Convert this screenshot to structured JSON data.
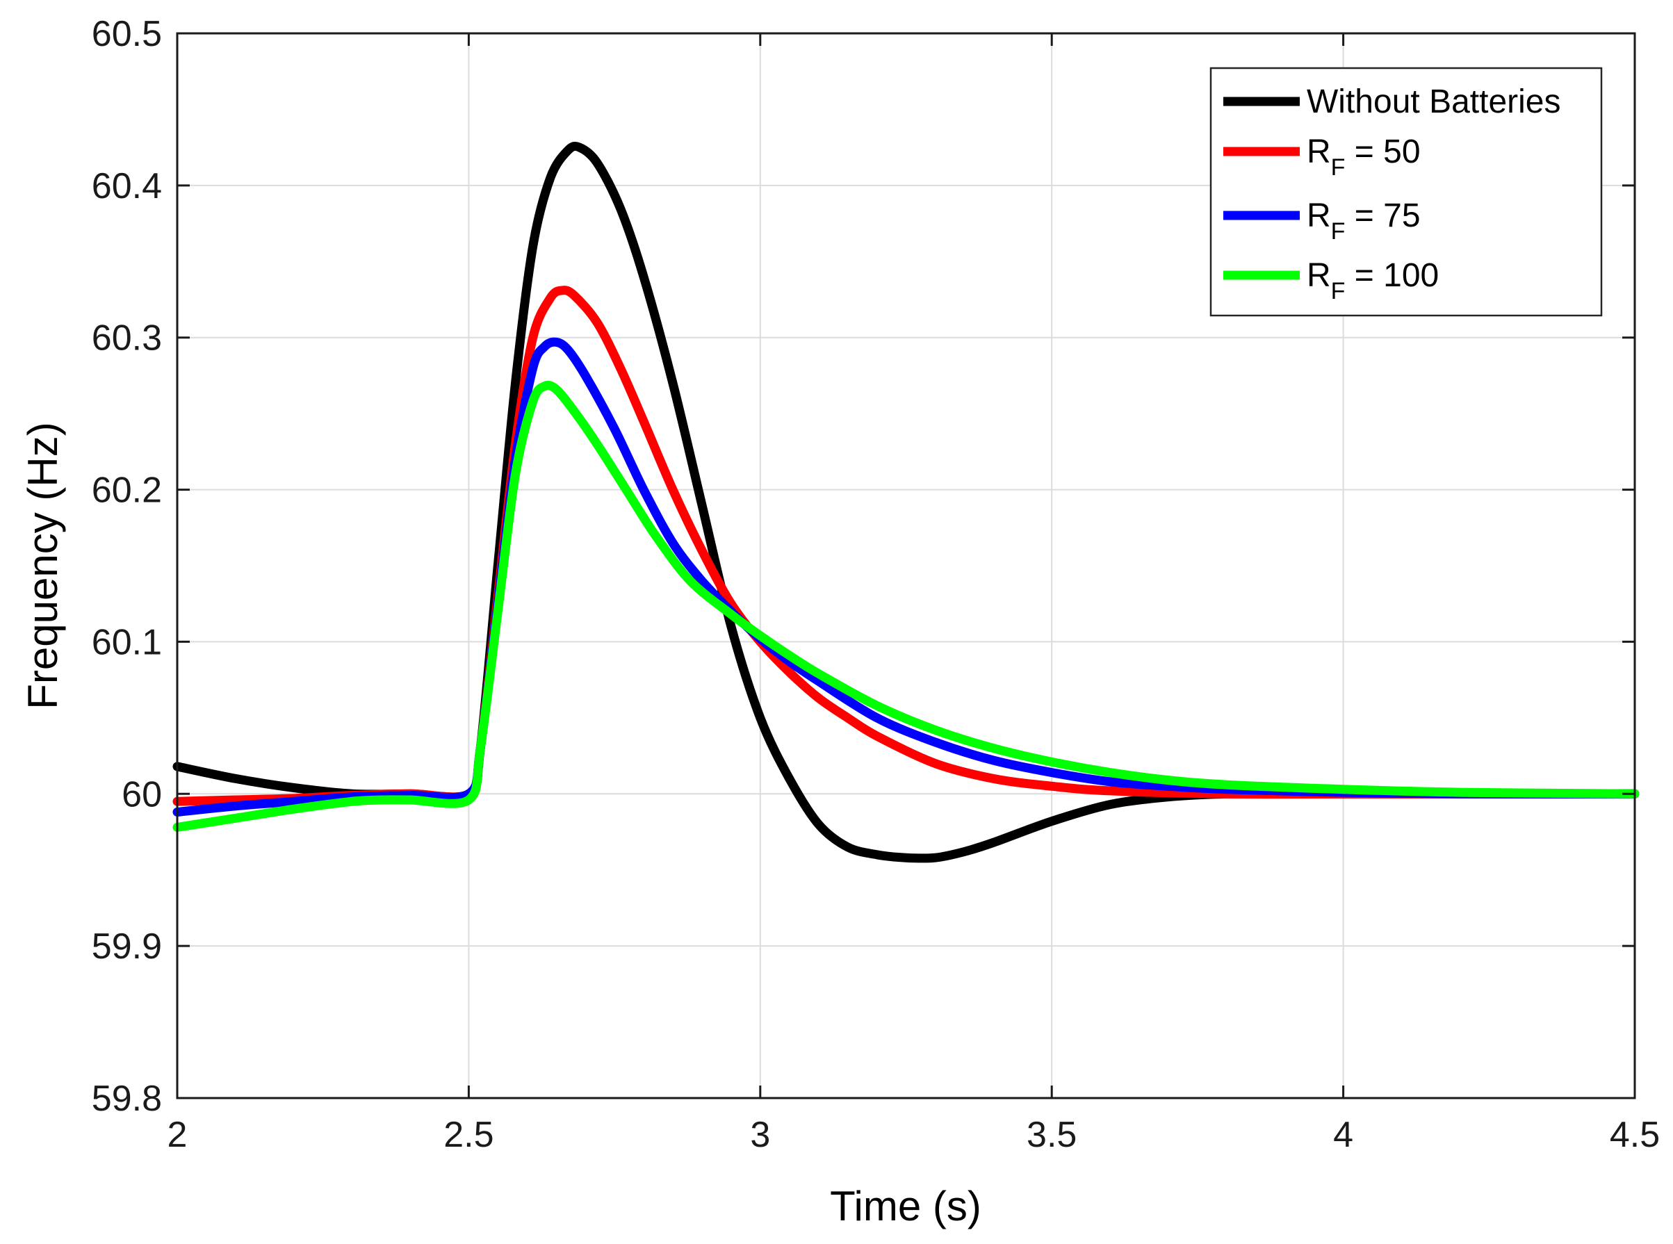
{
  "chart_data": {
    "type": "line",
    "title": "",
    "xlabel": "Time (s)",
    "ylabel": "Frequency (Hz)",
    "xlim": [
      2,
      4.5
    ],
    "ylim": [
      59.8,
      60.5
    ],
    "xticks": [
      2,
      2.5,
      3,
      3.5,
      4,
      4.5
    ],
    "xtick_labels": [
      "2",
      "2.5",
      "3",
      "3.5",
      "4",
      "4.5"
    ],
    "yticks": [
      59.8,
      59.9,
      60,
      60.1,
      60.2,
      60.3,
      60.4,
      60.5
    ],
    "ytick_labels": [
      "59.8",
      "59.9",
      "60",
      "60.1",
      "60.2",
      "60.3",
      "60.4",
      "60.5"
    ],
    "grid": true,
    "legend_position": "top-right",
    "series": [
      {
        "name": "Without Batteries",
        "legend_main": "Without Batteries",
        "legend_sub": "",
        "legend_rest": "",
        "color": "#000000",
        "x": [
          2.0,
          2.1,
          2.2,
          2.3,
          2.4,
          2.5,
          2.52,
          2.55,
          2.58,
          2.61,
          2.64,
          2.67,
          2.69,
          2.72,
          2.76,
          2.8,
          2.85,
          2.9,
          2.95,
          3.0,
          3.05,
          3.1,
          3.15,
          3.2,
          3.25,
          3.3,
          3.35,
          3.4,
          3.5,
          3.6,
          3.7,
          3.8,
          3.9,
          4.0,
          4.2,
          4.5
        ],
        "y": [
          60.018,
          60.01,
          60.004,
          60.0,
          60.0,
          60.0,
          60.03,
          60.15,
          60.27,
          60.36,
          60.405,
          60.423,
          60.425,
          60.415,
          60.385,
          60.34,
          60.27,
          60.19,
          60.11,
          60.05,
          60.01,
          59.98,
          59.965,
          59.96,
          59.958,
          59.958,
          59.962,
          59.968,
          59.982,
          59.993,
          59.998,
          60.0,
          60.0,
          60.0,
          60.0,
          60.0
        ]
      },
      {
        "name": "R_F = 50",
        "legend_main": "R",
        "legend_sub": "F",
        "legend_rest": " = 50",
        "color": "#ff0000",
        "x": [
          2.0,
          2.1,
          2.2,
          2.3,
          2.4,
          2.5,
          2.52,
          2.55,
          2.58,
          2.61,
          2.64,
          2.66,
          2.68,
          2.72,
          2.76,
          2.8,
          2.85,
          2.9,
          2.95,
          3.0,
          3.05,
          3.1,
          3.15,
          3.2,
          3.3,
          3.4,
          3.5,
          3.6,
          3.8,
          4.0,
          4.2,
          4.5
        ],
        "y": [
          59.995,
          59.996,
          59.997,
          59.999,
          60.0,
          60.0,
          60.03,
          60.13,
          60.23,
          60.3,
          60.326,
          60.331,
          60.328,
          60.31,
          60.28,
          60.245,
          60.2,
          60.16,
          60.125,
          60.1,
          60.08,
          60.063,
          60.05,
          60.038,
          60.02,
          60.01,
          60.005,
          60.002,
          60.0,
          60.0,
          60.0,
          60.0
        ]
      },
      {
        "name": "R_F = 75",
        "legend_main": "R",
        "legend_sub": "F",
        "legend_rest": " = 75",
        "color": "#0000ff",
        "x": [
          2.0,
          2.1,
          2.2,
          2.3,
          2.4,
          2.5,
          2.52,
          2.55,
          2.58,
          2.61,
          2.63,
          2.65,
          2.67,
          2.7,
          2.75,
          2.8,
          2.85,
          2.9,
          2.95,
          3.0,
          3.05,
          3.1,
          3.2,
          3.3,
          3.4,
          3.5,
          3.6,
          3.7,
          3.8,
          4.0,
          4.2,
          4.5
        ],
        "y": [
          59.988,
          59.992,
          59.995,
          59.998,
          59.999,
          60.0,
          60.03,
          60.125,
          60.22,
          60.28,
          60.294,
          60.297,
          60.292,
          60.275,
          60.24,
          60.2,
          60.165,
          60.14,
          60.12,
          60.102,
          60.087,
          60.074,
          60.05,
          60.034,
          60.022,
          60.014,
          60.008,
          60.005,
          60.003,
          60.001,
          60.0,
          60.0
        ]
      },
      {
        "name": "R_F = 100",
        "legend_main": "R",
        "legend_sub": "F",
        "legend_rest": " = 100",
        "color": "#00ff00",
        "x": [
          2.0,
          2.1,
          2.2,
          2.3,
          2.35,
          2.4,
          2.5,
          2.52,
          2.55,
          2.58,
          2.61,
          2.63,
          2.65,
          2.68,
          2.72,
          2.77,
          2.82,
          2.88,
          2.95,
          3.0,
          3.05,
          3.1,
          3.2,
          3.3,
          3.4,
          3.5,
          3.6,
          3.7,
          3.8,
          4.0,
          4.2,
          4.5
        ],
        "y": [
          59.978,
          59.984,
          59.99,
          59.995,
          59.996,
          59.996,
          59.996,
          60.03,
          60.12,
          60.21,
          60.258,
          60.268,
          60.266,
          60.252,
          60.23,
          60.2,
          60.17,
          60.14,
          60.118,
          60.104,
          60.091,
          60.079,
          60.058,
          60.042,
          60.03,
          60.021,
          60.014,
          60.009,
          60.006,
          60.003,
          60.001,
          60.0
        ]
      }
    ]
  }
}
